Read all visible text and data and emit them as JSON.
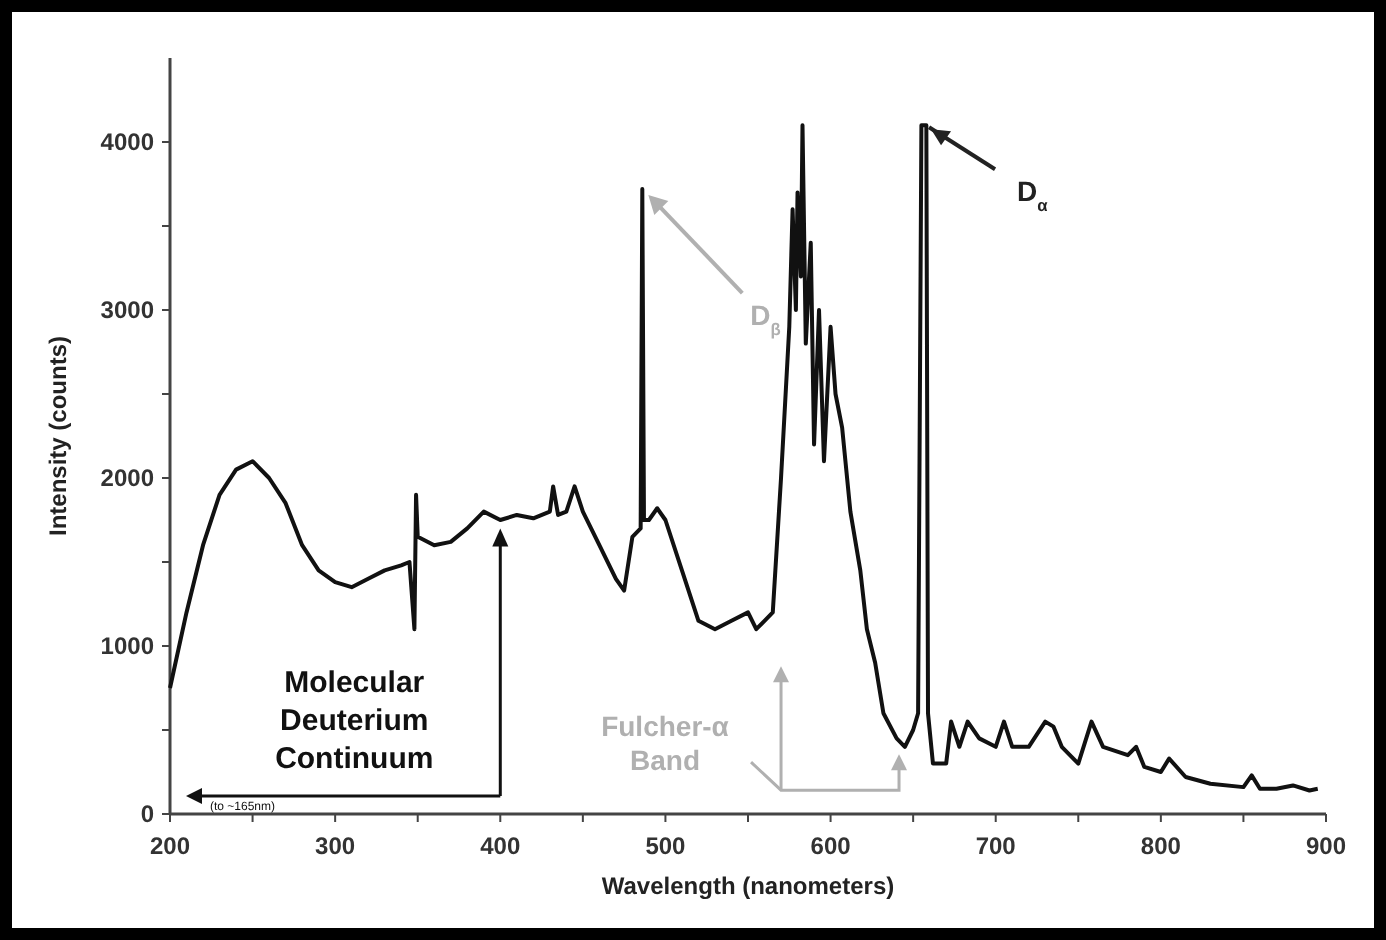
{
  "chart_data": {
    "type": "line",
    "xlabel": "Wavelength (nanometers)",
    "ylabel": "Intensity (counts)",
    "xlim": [
      200,
      900
    ],
    "ylim": [
      0,
      4500
    ],
    "xticks": [
      200,
      {
        "value": 250,
        "label": null
      },
      300,
      {
        "value": 350,
        "label": null
      },
      400,
      {
        "value": 450,
        "label": null
      },
      500,
      {
        "value": 550,
        "label": null
      },
      600,
      {
        "value": 650,
        "label": null
      },
      700,
      {
        "value": 750,
        "label": null
      },
      800,
      {
        "value": 850,
        "label": null
      },
      900
    ],
    "yticks": [
      0,
      {
        "value": 500,
        "label": null
      },
      1000,
      {
        "value": 1500,
        "label": null
      },
      2000,
      {
        "value": 2500,
        "label": null
      },
      3000,
      {
        "value": 3500,
        "label": null
      },
      4000
    ],
    "grid": false,
    "marker": "none",
    "line_style": "solid",
    "series": [
      {
        "color": "#111111",
        "x": [
          200,
          210,
          220,
          230,
          240,
          250,
          260,
          270,
          280,
          290,
          300,
          310,
          320,
          330,
          340,
          345,
          348,
          349,
          350,
          360,
          370,
          380,
          390,
          400,
          410,
          420,
          430,
          432,
          435,
          440,
          445,
          450,
          460,
          470,
          475,
          480,
          485,
          486,
          487,
          490,
          495,
          500,
          510,
          520,
          530,
          540,
          550,
          555,
          560,
          565,
          570,
          575,
          577,
          579,
          580,
          582,
          583,
          585,
          588,
          590,
          593,
          596,
          600,
          603,
          607,
          612,
          618,
          622,
          627,
          632,
          640,
          645,
          650,
          653,
          655,
          658,
          659,
          662,
          670,
          673,
          678,
          683,
          690,
          700,
          705,
          710,
          720,
          730,
          735,
          740,
          750,
          758,
          765,
          780,
          785,
          790,
          800,
          805,
          815,
          830,
          850,
          855,
          860,
          870,
          880,
          890,
          895
        ],
        "values": [
          750,
          1200,
          1600,
          1900,
          2050,
          2100,
          2000,
          1850,
          1600,
          1450,
          1380,
          1350,
          1400,
          1450,
          1480,
          1500,
          1100,
          1900,
          1650,
          1600,
          1620,
          1700,
          1800,
          1750,
          1780,
          1760,
          1800,
          1950,
          1780,
          1800,
          1950,
          1800,
          1600,
          1400,
          1330,
          1650,
          1700,
          3720,
          1750,
          1750,
          1820,
          1750,
          1450,
          1150,
          1100,
          1150,
          1200,
          1100,
          1150,
          1200,
          2000,
          2900,
          3600,
          3000,
          3700,
          3200,
          4100,
          2800,
          3400,
          2200,
          3000,
          2100,
          2900,
          2500,
          2300,
          1800,
          1450,
          1100,
          900,
          600,
          450,
          400,
          500,
          600,
          4100,
          4100,
          600,
          300,
          300,
          550,
          400,
          550,
          450,
          400,
          550,
          400,
          400,
          550,
          520,
          400,
          300,
          550,
          400,
          350,
          400,
          280,
          250,
          330,
          220,
          180,
          160,
          230,
          150,
          150,
          170,
          140,
          150
        ]
      }
    ],
    "annotations": [
      {
        "text": "D$_{β}$",
        "x": 486,
        "y": 3720
      },
      {
        "text": "D$_{α}$",
        "x": 656,
        "y": 4100
      },
      "Molecular Deuterium Continuum",
      "Fulcher-α Band",
      "(to ~165nm)"
    ]
  }
}
